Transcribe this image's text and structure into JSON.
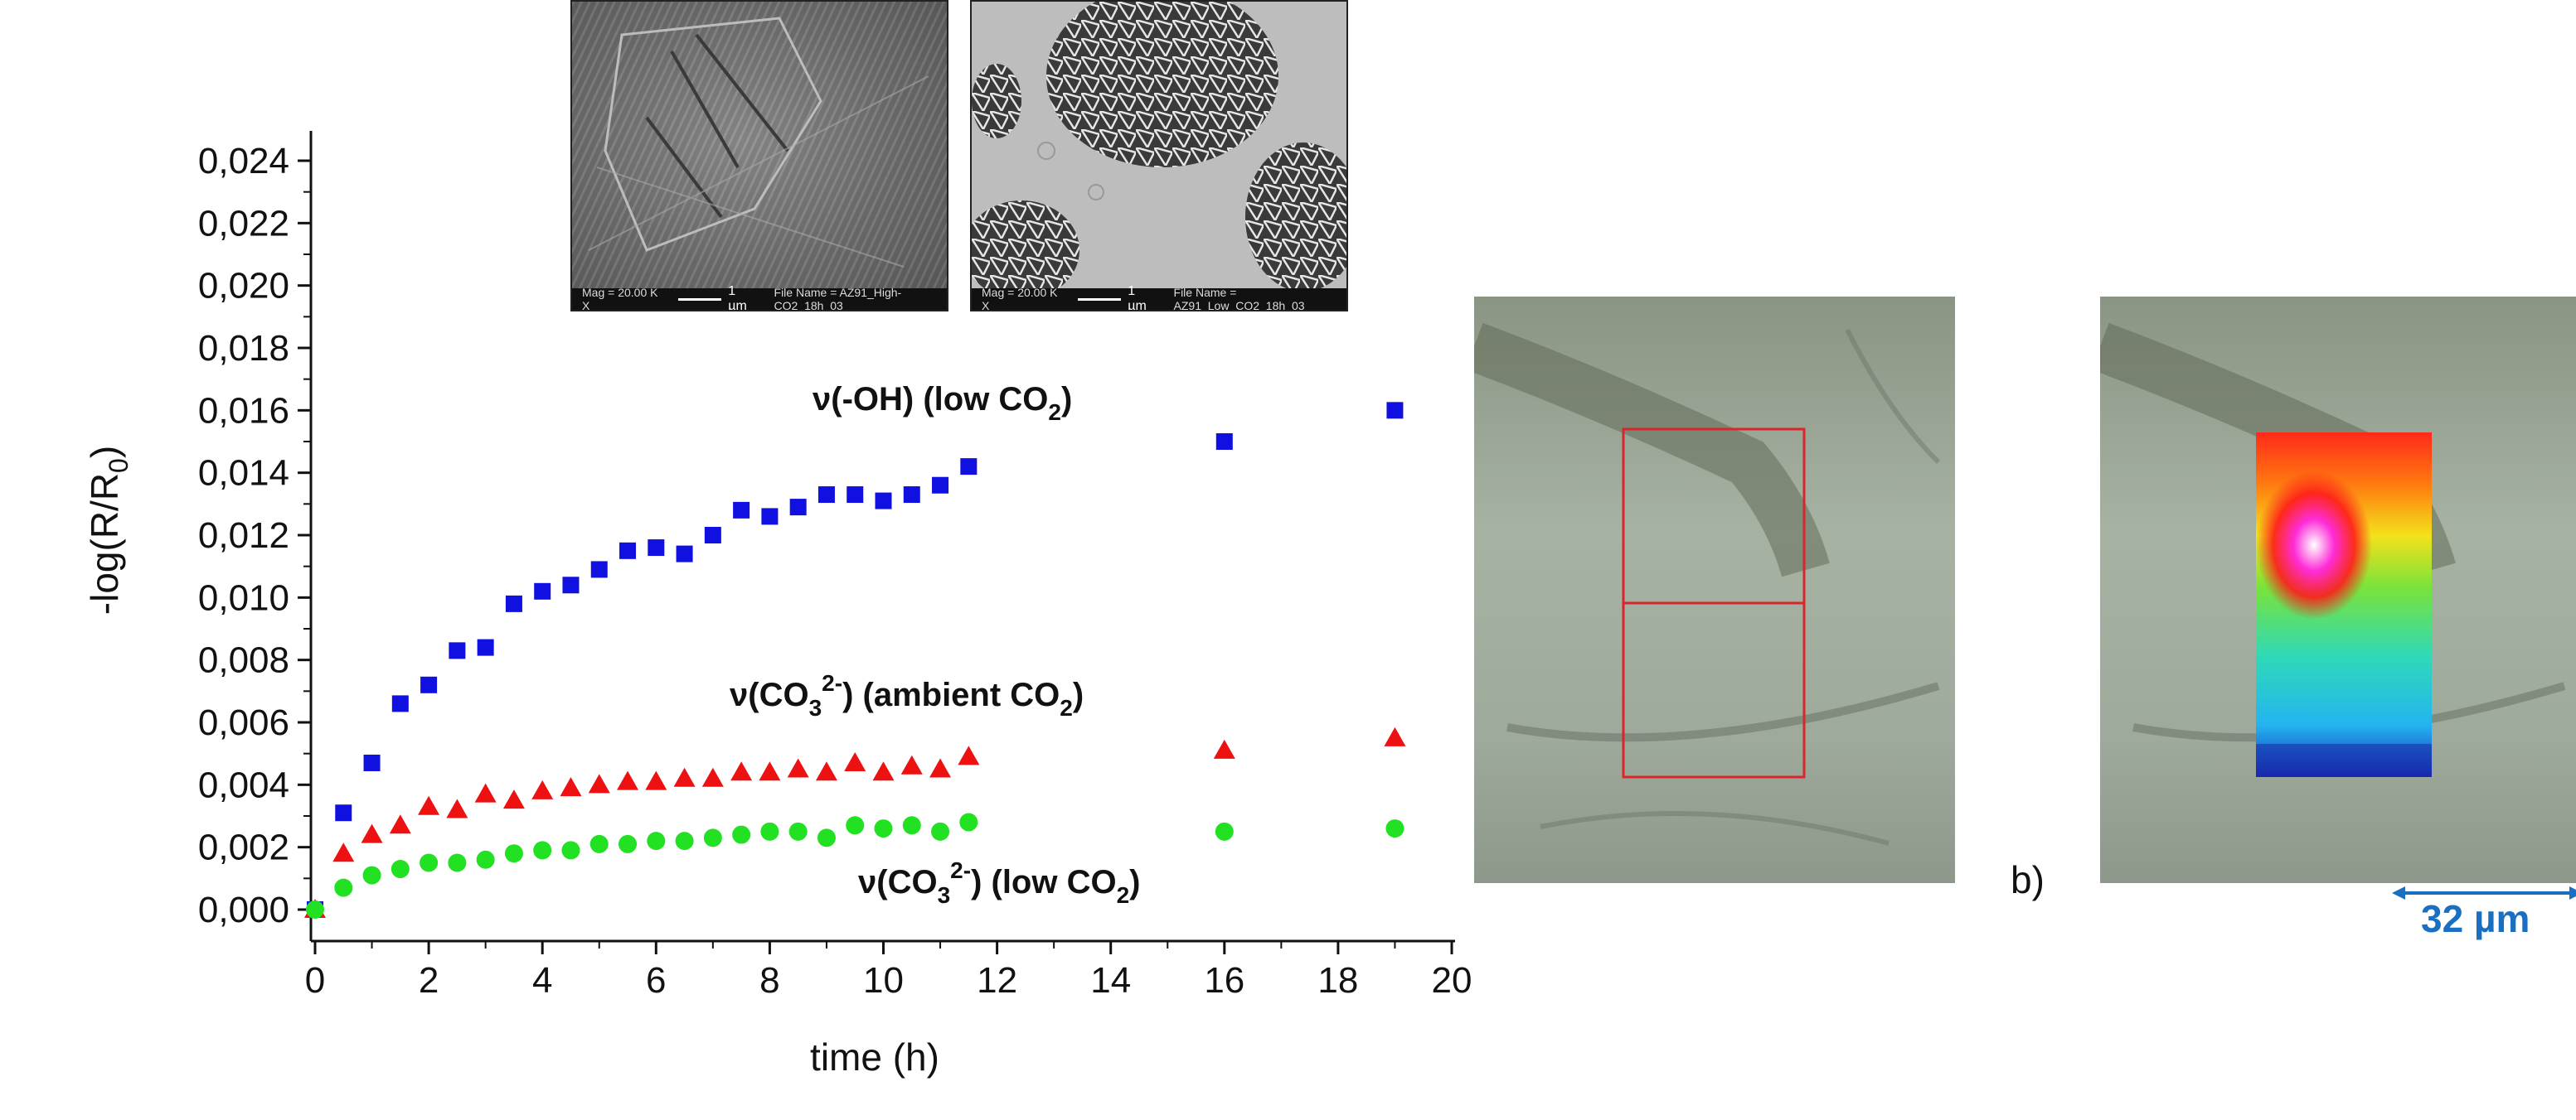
{
  "chart_data": {
    "type": "scatter",
    "xlabel": "time (h)",
    "ylabel_main": "-log(R/R",
    "ylabel_sub": "0",
    "ylabel_close": ")",
    "xlim": [
      0,
      20
    ],
    "ylim": [
      0,
      0.024
    ],
    "x_ticks": [
      "0",
      "2",
      "4",
      "6",
      "8",
      "10",
      "12",
      "14",
      "16",
      "18",
      "20"
    ],
    "y_ticks": [
      "0,000",
      "0,002",
      "0,004",
      "0,006",
      "0,008",
      "0,010",
      "0,012",
      "0,014",
      "0,016",
      "0,018",
      "0,020",
      "0,022",
      "0,024"
    ],
    "series": [
      {
        "marker": "square",
        "color": "#1010e0",
        "label_parts": [
          "ν(-OH) (low CO",
          "2",
          ")"
        ],
        "x": [
          0,
          0.5,
          1,
          1.5,
          2,
          2.5,
          3,
          3.5,
          4,
          4.5,
          5,
          5.5,
          6,
          6.5,
          7,
          7.5,
          8,
          8.5,
          9,
          9.5,
          10,
          10.5,
          11,
          11.5,
          16,
          19
        ],
        "y": [
          0.0,
          0.0031,
          0.0047,
          0.0066,
          0.0072,
          0.0083,
          0.0084,
          0.0098,
          0.0102,
          0.0104,
          0.0109,
          0.0115,
          0.0116,
          0.0114,
          0.012,
          0.0128,
          0.0126,
          0.0129,
          0.0133,
          0.0133,
          0.0131,
          0.0133,
          0.0136,
          0.0142,
          0.015,
          0.016
        ]
      },
      {
        "marker": "triangle",
        "color": "#ee1111",
        "label_parts": [
          "ν(CO",
          "3",
          "2-",
          ")  (ambient CO",
          "2",
          ")"
        ],
        "x": [
          0,
          0.5,
          1,
          1.5,
          2,
          2.5,
          3,
          3.5,
          4,
          4.5,
          5,
          5.5,
          6,
          6.5,
          7,
          7.5,
          8,
          8.5,
          9,
          9.5,
          10,
          10.5,
          11,
          11.5,
          16,
          19
        ],
        "y": [
          0.0,
          0.0018,
          0.0024,
          0.0027,
          0.0033,
          0.0032,
          0.0037,
          0.0035,
          0.0038,
          0.0039,
          0.004,
          0.0041,
          0.0041,
          0.0042,
          0.0042,
          0.0044,
          0.0044,
          0.0045,
          0.0044,
          0.0047,
          0.0044,
          0.0046,
          0.0045,
          0.0049,
          0.0051,
          0.0055
        ]
      },
      {
        "marker": "circle",
        "color": "#22e022",
        "label_parts": [
          "ν(CO",
          "3",
          "2-",
          ")  (low CO",
          "2",
          ")"
        ],
        "x": [
          0,
          0.5,
          1,
          1.5,
          2,
          2.5,
          3,
          3.5,
          4,
          4.5,
          5,
          5.5,
          6,
          6.5,
          7,
          7.5,
          8,
          8.5,
          9,
          9.5,
          10,
          10.5,
          11,
          11.5,
          16,
          19
        ],
        "y": [
          0.0,
          0.0007,
          0.0011,
          0.0013,
          0.0015,
          0.0015,
          0.0016,
          0.0018,
          0.0019,
          0.0019,
          0.0021,
          0.0021,
          0.0022,
          0.0022,
          0.0023,
          0.0024,
          0.0025,
          0.0025,
          0.0023,
          0.0027,
          0.0026,
          0.0027,
          0.0025,
          0.0028,
          0.0025,
          0.0026
        ]
      }
    ]
  },
  "sem_images": [
    {
      "magnification": "Mag = 20.00 K X",
      "scale": "1 µm",
      "filename": "File Name = AZ91_High-CO2_18h_03"
    },
    {
      "magnification": "Mag = 20.00 K X",
      "scale": "1 µm",
      "filename": "File Name = AZ91_Low_CO2_18h_03"
    }
  ],
  "panel_b": {
    "caption": "b)",
    "scale_label": "32 µm"
  }
}
